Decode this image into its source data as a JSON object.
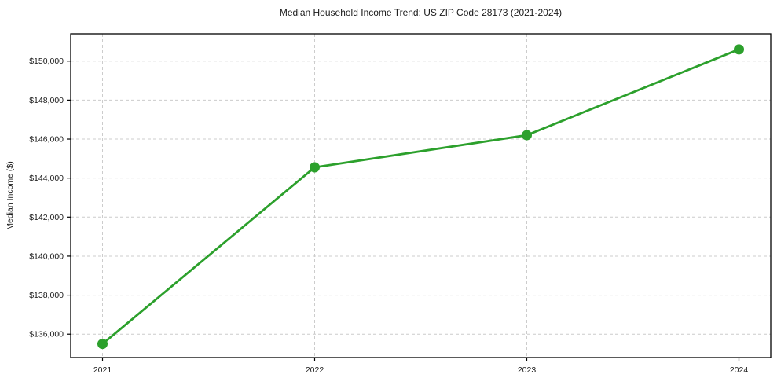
{
  "chart_data": {
    "type": "line",
    "title": "Median Household Income Trend: US ZIP Code 28173 (2021-2024)",
    "xlabel": "",
    "ylabel": "Median Income ($)",
    "x": [
      2021,
      2022,
      2023,
      2024
    ],
    "x_tick_labels": [
      "2021",
      "2022",
      "2023",
      "2024"
    ],
    "series": [
      {
        "name": "median-household-income",
        "values": [
          135500,
          144550,
          146200,
          150600
        ]
      }
    ],
    "y_ticks": [
      136000,
      138000,
      140000,
      142000,
      144000,
      146000,
      148000,
      150000
    ],
    "y_tick_labels": [
      "$136,000",
      "$138,000",
      "$140,000",
      "$142,000",
      "$144,000",
      "$146,000",
      "$148,000",
      "$150,000"
    ],
    "xlim": [
      2020.85,
      2024.15
    ],
    "ylim": [
      134800,
      151400
    ],
    "grid": true,
    "grid_style": "dashed",
    "legend_position": "none",
    "colors": {
      "line": "#2ca02c",
      "marker": "#2ca02c",
      "grid": "#cccccc",
      "spine": "#000000",
      "text": "#1a1a1a",
      "background": "#ffffff"
    }
  }
}
